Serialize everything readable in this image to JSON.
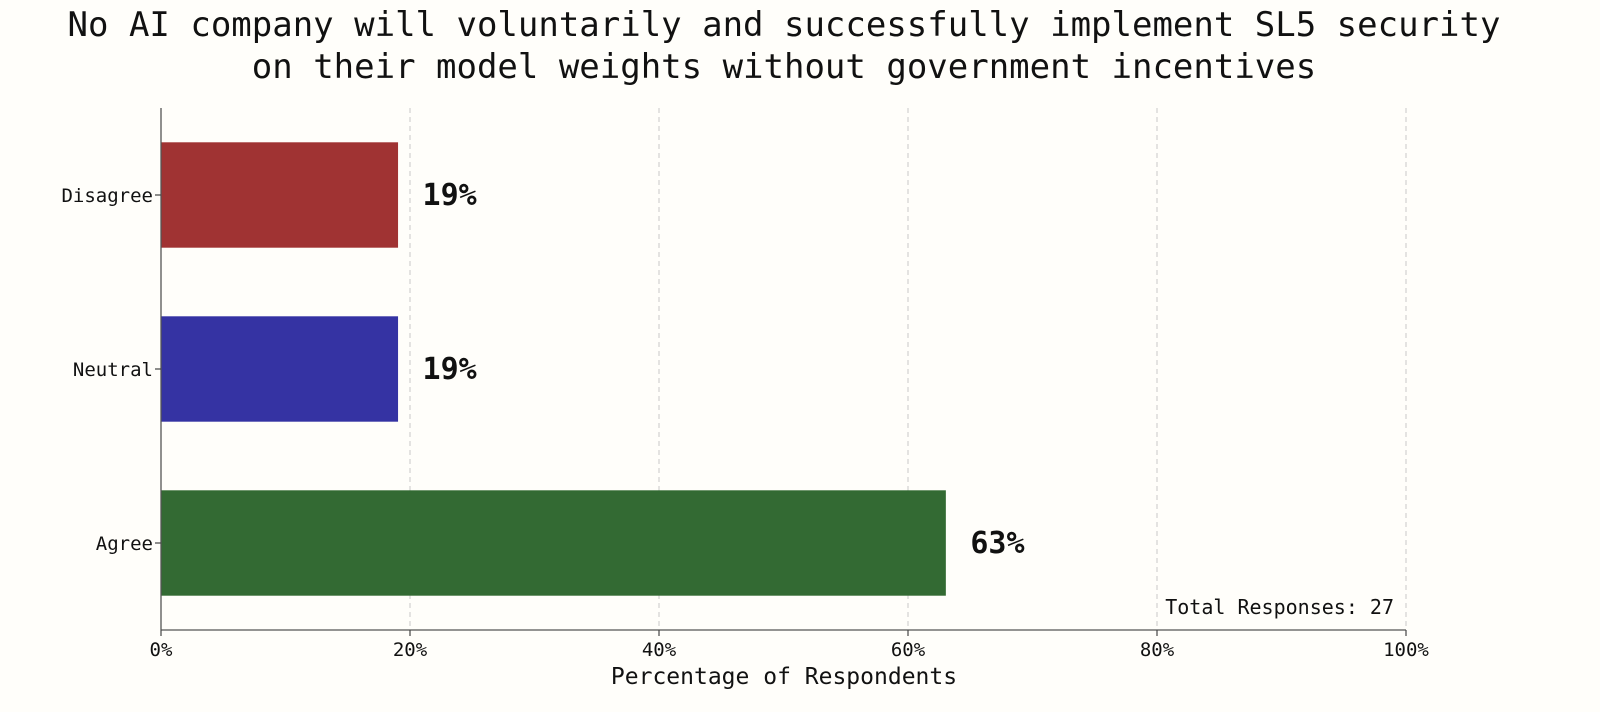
{
  "chart_data": {
    "type": "bar",
    "orientation": "horizontal",
    "title": "No AI company will voluntarily and successfully implement SL5 security\non their model weights without government incentives",
    "categories": [
      "Disagree",
      "Neutral",
      "Agree"
    ],
    "values": [
      19,
      19,
      63
    ],
    "value_labels": [
      "19%",
      "19%",
      "63%"
    ],
    "colors": [
      "#a03333",
      "#3533a3",
      "#336a33"
    ],
    "xlabel": "Percentage of Respondents",
    "ylabel": "",
    "xlim": [
      0,
      100
    ],
    "x_ticks": [
      "0%",
      "20%",
      "40%",
      "60%",
      "80%",
      "100%"
    ],
    "grid": "vertical-dashed",
    "annotation": "Total Responses: 27"
  }
}
